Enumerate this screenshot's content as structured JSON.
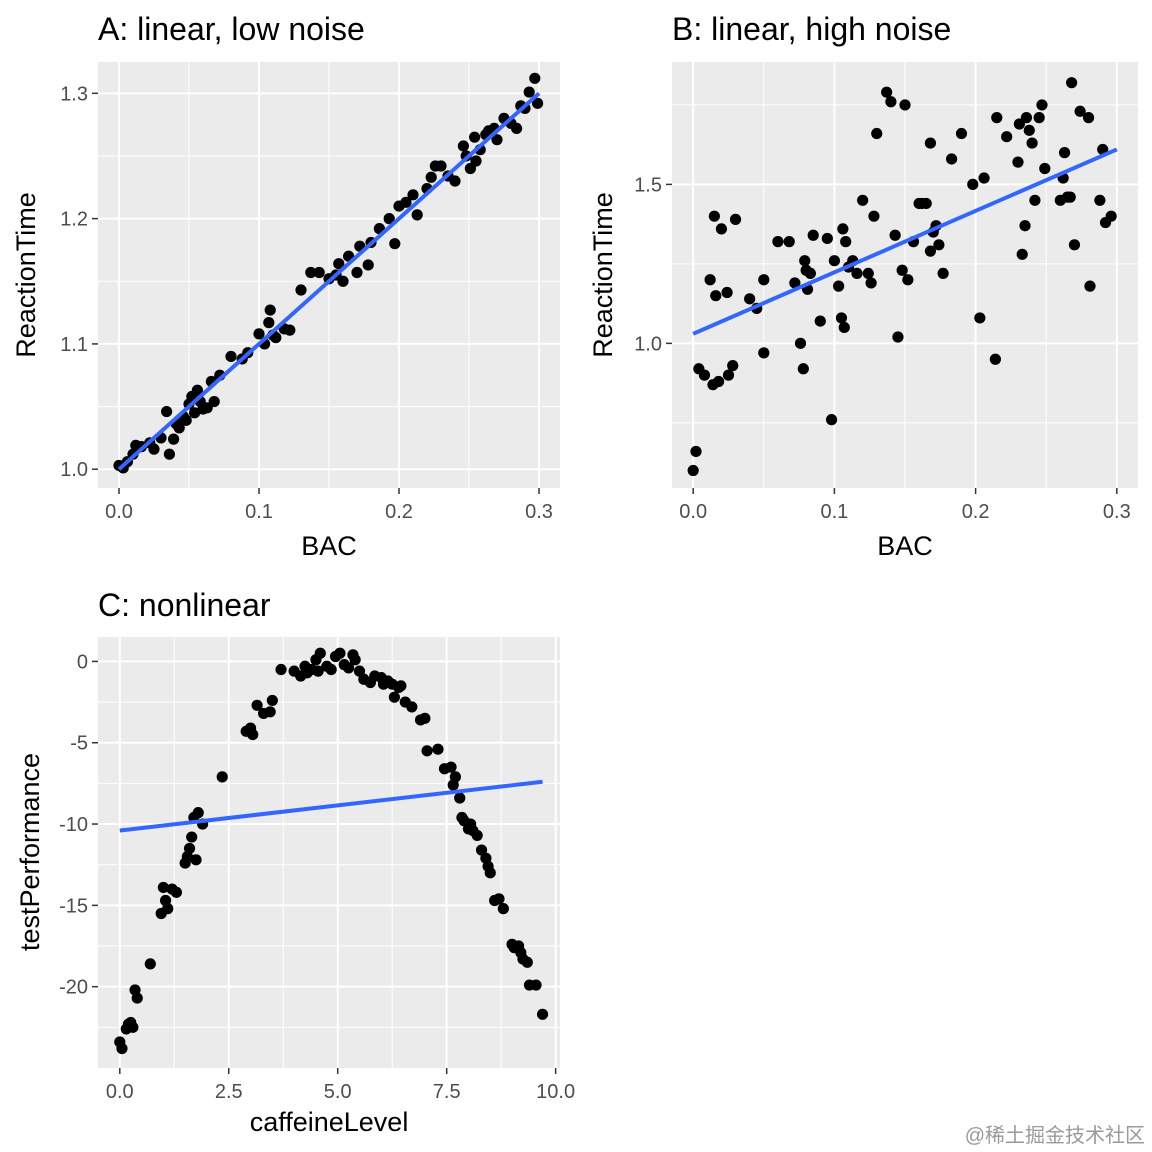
{
  "colors": {
    "panel_bg": "#ebebeb",
    "grid_major": "#ffffff",
    "point": "#000000",
    "fit_line": "#3366ff",
    "tick_text": "#4d4d4d"
  },
  "watermark": "@稀土掘金技术社区",
  "chart_data": [
    {
      "type": "scatter",
      "title": "A: linear, low noise",
      "xlabel": "BAC",
      "ylabel": "ReactionTime",
      "xlim": [
        -0.015,
        0.315
      ],
      "ylim": [
        0.985,
        1.325
      ],
      "xticks": [
        0.0,
        0.1,
        0.2,
        0.3
      ],
      "xtick_labels": [
        "0.0",
        "0.1",
        "0.2",
        "0.3"
      ],
      "yticks": [
        1.0,
        1.1,
        1.2,
        1.3
      ],
      "ytick_labels": [
        "1.0",
        "1.1",
        "1.2",
        "1.3"
      ],
      "grid": true,
      "fit_line": {
        "x": [
          0.0,
          0.3
        ],
        "y": [
          1.0,
          1.3
        ]
      },
      "points": [
        [
          0.0,
          1.003
        ],
        [
          0.003,
          1.001
        ],
        [
          0.006,
          1.006
        ],
        [
          0.01,
          1.012
        ],
        [
          0.012,
          1.019
        ],
        [
          0.016,
          1.018
        ],
        [
          0.022,
          1.021
        ],
        [
          0.025,
          1.016
        ],
        [
          0.03,
          1.025
        ],
        [
          0.034,
          1.046
        ],
        [
          0.036,
          1.012
        ],
        [
          0.039,
          1.024
        ],
        [
          0.041,
          1.036
        ],
        [
          0.043,
          1.033
        ],
        [
          0.046,
          1.042
        ],
        [
          0.048,
          1.039
        ],
        [
          0.05,
          1.052
        ],
        [
          0.052,
          1.058
        ],
        [
          0.054,
          1.045
        ],
        [
          0.056,
          1.063
        ],
        [
          0.058,
          1.054
        ],
        [
          0.06,
          1.048
        ],
        [
          0.063,
          1.049
        ],
        [
          0.066,
          1.07
        ],
        [
          0.068,
          1.054
        ],
        [
          0.072,
          1.075
        ],
        [
          0.08,
          1.09
        ],
        [
          0.088,
          1.088
        ],
        [
          0.092,
          1.093
        ],
        [
          0.1,
          1.108
        ],
        [
          0.104,
          1.1
        ],
        [
          0.107,
          1.117
        ],
        [
          0.108,
          1.127
        ],
        [
          0.11,
          1.107
        ],
        [
          0.112,
          1.105
        ],
        [
          0.118,
          1.112
        ],
        [
          0.122,
          1.111
        ],
        [
          0.13,
          1.143
        ],
        [
          0.137,
          1.157
        ],
        [
          0.143,
          1.157
        ],
        [
          0.15,
          1.152
        ],
        [
          0.155,
          1.155
        ],
        [
          0.157,
          1.164
        ],
        [
          0.16,
          1.15
        ],
        [
          0.164,
          1.17
        ],
        [
          0.17,
          1.157
        ],
        [
          0.172,
          1.178
        ],
        [
          0.178,
          1.163
        ],
        [
          0.18,
          1.181
        ],
        [
          0.186,
          1.192
        ],
        [
          0.193,
          1.2
        ],
        [
          0.197,
          1.18
        ],
        [
          0.2,
          1.21
        ],
        [
          0.205,
          1.213
        ],
        [
          0.21,
          1.219
        ],
        [
          0.213,
          1.203
        ],
        [
          0.22,
          1.224
        ],
        [
          0.223,
          1.233
        ],
        [
          0.226,
          1.242
        ],
        [
          0.23,
          1.242
        ],
        [
          0.235,
          1.234
        ],
        [
          0.24,
          1.23
        ],
        [
          0.246,
          1.258
        ],
        [
          0.248,
          1.25
        ],
        [
          0.251,
          1.24
        ],
        [
          0.254,
          1.265
        ],
        [
          0.255,
          1.246
        ],
        [
          0.258,
          1.255
        ],
        [
          0.262,
          1.267
        ],
        [
          0.264,
          1.27
        ],
        [
          0.268,
          1.272
        ],
        [
          0.27,
          1.263
        ],
        [
          0.275,
          1.28
        ],
        [
          0.28,
          1.276
        ],
        [
          0.284,
          1.272
        ],
        [
          0.287,
          1.29
        ],
        [
          0.29,
          1.288
        ],
        [
          0.293,
          1.301
        ],
        [
          0.297,
          1.312
        ],
        [
          0.299,
          1.292
        ]
      ]
    },
    {
      "type": "scatter",
      "title": "B: linear, high noise",
      "xlabel": "BAC",
      "ylabel": "ReactionTime",
      "xlim": [
        -0.015,
        0.315
      ],
      "ylim": [
        0.545,
        1.885
      ],
      "xticks": [
        0.0,
        0.1,
        0.2,
        0.3
      ],
      "xtick_labels": [
        "0.0",
        "0.1",
        "0.2",
        "0.3"
      ],
      "yticks": [
        1.0,
        1.5
      ],
      "ytick_labels": [
        "1.0",
        "1.5"
      ],
      "grid": true,
      "fit_line": {
        "x": [
          0.0,
          0.3
        ],
        "y": [
          1.03,
          1.61
        ]
      },
      "points": [
        [
          0.0,
          0.6
        ],
        [
          0.002,
          0.66
        ],
        [
          0.004,
          0.92
        ],
        [
          0.008,
          0.9
        ],
        [
          0.012,
          1.2
        ],
        [
          0.014,
          0.87
        ],
        [
          0.015,
          1.4
        ],
        [
          0.016,
          1.15
        ],
        [
          0.018,
          0.88
        ],
        [
          0.02,
          1.36
        ],
        [
          0.024,
          1.16
        ],
        [
          0.025,
          0.9
        ],
        [
          0.028,
          0.93
        ],
        [
          0.03,
          1.39
        ],
        [
          0.04,
          1.14
        ],
        [
          0.045,
          1.11
        ],
        [
          0.05,
          0.97
        ],
        [
          0.05,
          1.2
        ],
        [
          0.06,
          1.32
        ],
        [
          0.068,
          1.32
        ],
        [
          0.072,
          1.19
        ],
        [
          0.076,
          1.0
        ],
        [
          0.078,
          0.92
        ],
        [
          0.079,
          1.26
        ],
        [
          0.08,
          1.23
        ],
        [
          0.081,
          1.17
        ],
        [
          0.083,
          1.22
        ],
        [
          0.085,
          1.34
        ],
        [
          0.09,
          1.07
        ],
        [
          0.095,
          1.33
        ],
        [
          0.098,
          0.76
        ],
        [
          0.1,
          1.26
        ],
        [
          0.103,
          1.18
        ],
        [
          0.105,
          1.08
        ],
        [
          0.106,
          1.36
        ],
        [
          0.107,
          1.05
        ],
        [
          0.108,
          1.32
        ],
        [
          0.11,
          1.24
        ],
        [
          0.113,
          1.26
        ],
        [
          0.116,
          1.22
        ],
        [
          0.12,
          1.45
        ],
        [
          0.124,
          1.22
        ],
        [
          0.126,
          1.19
        ],
        [
          0.128,
          1.4
        ],
        [
          0.13,
          1.66
        ],
        [
          0.137,
          1.79
        ],
        [
          0.14,
          1.76
        ],
        [
          0.143,
          1.34
        ],
        [
          0.145,
          1.02
        ],
        [
          0.148,
          1.23
        ],
        [
          0.15,
          1.75
        ],
        [
          0.152,
          1.2
        ],
        [
          0.156,
          1.32
        ],
        [
          0.16,
          1.44
        ],
        [
          0.162,
          1.44
        ],
        [
          0.165,
          1.44
        ],
        [
          0.168,
          1.29
        ],
        [
          0.168,
          1.63
        ],
        [
          0.17,
          1.35
        ],
        [
          0.172,
          1.37
        ],
        [
          0.174,
          1.31
        ],
        [
          0.177,
          1.22
        ],
        [
          0.183,
          1.58
        ],
        [
          0.19,
          1.66
        ],
        [
          0.198,
          1.5
        ],
        [
          0.203,
          1.08
        ],
        [
          0.206,
          1.52
        ],
        [
          0.214,
          0.95
        ],
        [
          0.215,
          1.71
        ],
        [
          0.222,
          1.65
        ],
        [
          0.23,
          1.57
        ],
        [
          0.231,
          1.69
        ],
        [
          0.233,
          1.28
        ],
        [
          0.235,
          1.37
        ],
        [
          0.236,
          1.71
        ],
        [
          0.238,
          1.67
        ],
        [
          0.24,
          1.63
        ],
        [
          0.242,
          1.45
        ],
        [
          0.245,
          1.71
        ],
        [
          0.247,
          1.75
        ],
        [
          0.249,
          1.55
        ],
        [
          0.26,
          1.45
        ],
        [
          0.262,
          1.52
        ],
        [
          0.263,
          1.6
        ],
        [
          0.265,
          1.46
        ],
        [
          0.267,
          1.46
        ],
        [
          0.268,
          1.82
        ],
        [
          0.27,
          1.31
        ],
        [
          0.274,
          1.73
        ],
        [
          0.28,
          1.71
        ],
        [
          0.281,
          1.18
        ],
        [
          0.288,
          1.45
        ],
        [
          0.29,
          1.61
        ],
        [
          0.292,
          1.38
        ],
        [
          0.296,
          1.4
        ]
      ]
    },
    {
      "type": "scatter",
      "title": "C: nonlinear",
      "xlabel": "caffeineLevel",
      "ylabel": "testPerformance",
      "xlim": [
        -0.5,
        10.1
      ],
      "ylim": [
        -25.0,
        1.5
      ],
      "xticks": [
        0.0,
        2.5,
        5.0,
        7.5,
        10.0
      ],
      "xtick_labels": [
        "0.0",
        "2.5",
        "5.0",
        "7.5",
        "10.0"
      ],
      "yticks": [
        0,
        -5,
        -10,
        -15,
        -20
      ],
      "ytick_labels": [
        "0",
        "-5",
        "-10",
        "-15",
        "-20"
      ],
      "grid": true,
      "fit_line": {
        "x": [
          0.0,
          9.7
        ],
        "y": [
          -10.4,
          -7.4
        ]
      },
      "points": [
        [
          0.0,
          -23.4
        ],
        [
          0.05,
          -23.8
        ],
        [
          0.15,
          -22.6
        ],
        [
          0.2,
          -22.3
        ],
        [
          0.25,
          -22.2
        ],
        [
          0.3,
          -22.5
        ],
        [
          0.35,
          -20.2
        ],
        [
          0.4,
          -20.7
        ],
        [
          0.7,
          -18.6
        ],
        [
          0.95,
          -15.5
        ],
        [
          1.0,
          -13.9
        ],
        [
          1.05,
          -14.7
        ],
        [
          1.1,
          -15.2
        ],
        [
          1.2,
          -14.0
        ],
        [
          1.3,
          -14.2
        ],
        [
          1.5,
          -12.4
        ],
        [
          1.55,
          -12.0
        ],
        [
          1.6,
          -11.5
        ],
        [
          1.65,
          -10.8
        ],
        [
          1.7,
          -9.6
        ],
        [
          1.75,
          -12.2
        ],
        [
          1.8,
          -9.3
        ],
        [
          1.9,
          -10.0
        ],
        [
          2.35,
          -7.1
        ],
        [
          2.9,
          -4.3
        ],
        [
          3.0,
          -4.1
        ],
        [
          3.05,
          -4.5
        ],
        [
          3.15,
          -2.7
        ],
        [
          3.3,
          -3.2
        ],
        [
          3.45,
          -3.1
        ],
        [
          3.5,
          -2.4
        ],
        [
          3.7,
          -0.5
        ],
        [
          4.0,
          -0.6
        ],
        [
          4.15,
          -0.9
        ],
        [
          4.25,
          -0.3
        ],
        [
          4.3,
          -0.7
        ],
        [
          4.4,
          -0.5
        ],
        [
          4.5,
          0.1
        ],
        [
          4.55,
          -0.6
        ],
        [
          4.6,
          0.5
        ],
        [
          4.75,
          -0.3
        ],
        [
          4.85,
          -0.5
        ],
        [
          4.95,
          0.3
        ],
        [
          5.05,
          0.5
        ],
        [
          5.15,
          -0.2
        ],
        [
          5.25,
          -0.4
        ],
        [
          5.35,
          0.4
        ],
        [
          5.4,
          0.1
        ],
        [
          5.5,
          -0.6
        ],
        [
          5.6,
          -1.1
        ],
        [
          5.75,
          -1.3
        ],
        [
          5.85,
          -0.9
        ],
        [
          6.0,
          -1.0
        ],
        [
          6.05,
          -1.4
        ],
        [
          6.15,
          -1.2
        ],
        [
          6.25,
          -1.4
        ],
        [
          6.3,
          -2.2
        ],
        [
          6.4,
          -1.6
        ],
        [
          6.45,
          -1.5
        ],
        [
          6.55,
          -2.5
        ],
        [
          6.7,
          -2.8
        ],
        [
          6.9,
          -3.6
        ],
        [
          7.0,
          -3.5
        ],
        [
          7.05,
          -5.5
        ],
        [
          7.3,
          -5.4
        ],
        [
          7.45,
          -6.6
        ],
        [
          7.6,
          -6.5
        ],
        [
          7.65,
          -7.6
        ],
        [
          7.7,
          -7.1
        ],
        [
          7.8,
          -8.4
        ],
        [
          7.85,
          -9.6
        ],
        [
          7.9,
          -9.8
        ],
        [
          8.0,
          -10.3
        ],
        [
          8.05,
          -10.0
        ],
        [
          8.1,
          -10.4
        ],
        [
          8.2,
          -10.7
        ],
        [
          8.3,
          -11.6
        ],
        [
          8.4,
          -12.1
        ],
        [
          8.45,
          -12.6
        ],
        [
          8.5,
          -13.0
        ],
        [
          8.6,
          -14.7
        ],
        [
          8.7,
          -14.6
        ],
        [
          8.8,
          -15.2
        ],
        [
          9.0,
          -17.4
        ],
        [
          9.05,
          -17.6
        ],
        [
          9.15,
          -17.5
        ],
        [
          9.2,
          -17.9
        ],
        [
          9.25,
          -18.3
        ],
        [
          9.35,
          -18.5
        ],
        [
          9.4,
          -19.9
        ],
        [
          9.55,
          -19.9
        ],
        [
          9.7,
          -21.7
        ]
      ]
    }
  ]
}
